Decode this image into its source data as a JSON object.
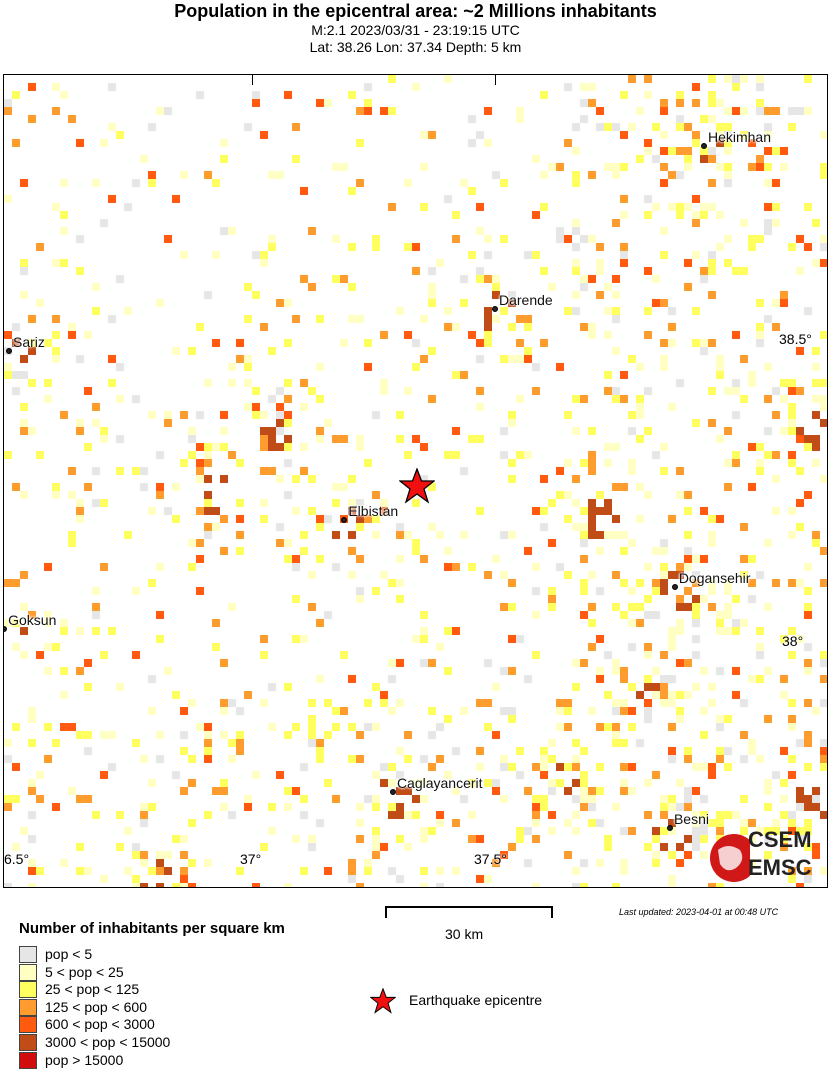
{
  "header": {
    "title": "Population in the epicentral area: ~2 Millions inhabitants",
    "magnitude_time": "M:2.1 2023/03/31 - 23:19:15 UTC",
    "location": "Lat: 38.26 Lon: 37.34 Depth: 5 km"
  },
  "map": {
    "cities": [
      {
        "name": "Hekimhan",
        "lat": 38.82,
        "lon": 37.93
      },
      {
        "name": "Darende",
        "lat": 38.55,
        "lon": 37.5
      },
      {
        "name": "Sariz",
        "lat": 38.48,
        "lon": 36.5
      },
      {
        "name": "Elbistan",
        "lat": 38.2,
        "lon": 37.19
      },
      {
        "name": "Dogansehir",
        "lat": 38.09,
        "lon": 37.87
      },
      {
        "name": "Goksun",
        "lat": 38.02,
        "lon": 36.49
      },
      {
        "name": "Caglayancerit",
        "lat": 37.75,
        "lon": 37.29
      },
      {
        "name": "Besni",
        "lat": 37.69,
        "lon": 37.86
      }
    ],
    "epicenter": {
      "lat": 38.26,
      "lon": 37.34
    },
    "lon_ticks": [
      "6.5°",
      "37°",
      "37.5°"
    ],
    "lat_ticks": [
      "38.5°",
      "38°"
    ],
    "logo": "CSEM EMSC"
  },
  "scale_bar": {
    "label": "30 km"
  },
  "last_updated": "Last updated: 2023-04-01 at 00:48 UTC",
  "legend": {
    "title": "Number of inhabitants per square km",
    "items": [
      {
        "label": "pop < 5",
        "color": "#e6e6e6"
      },
      {
        "label": "5 < pop < 25",
        "color": "#ffffc4"
      },
      {
        "label": "25 < pop < 125",
        "color": "#ffff60"
      },
      {
        "label": "125 < pop < 600",
        "color": "#ff9c30"
      },
      {
        "label": "600 < pop < 3000",
        "color": "#ff5a10"
      },
      {
        "label": "3000 < pop < 15000",
        "color": "#c04c18"
      },
      {
        "label": "pop > 15000",
        "color": "#d00c0c"
      }
    ],
    "epicentre_label": "Earthquake epicentre"
  }
}
